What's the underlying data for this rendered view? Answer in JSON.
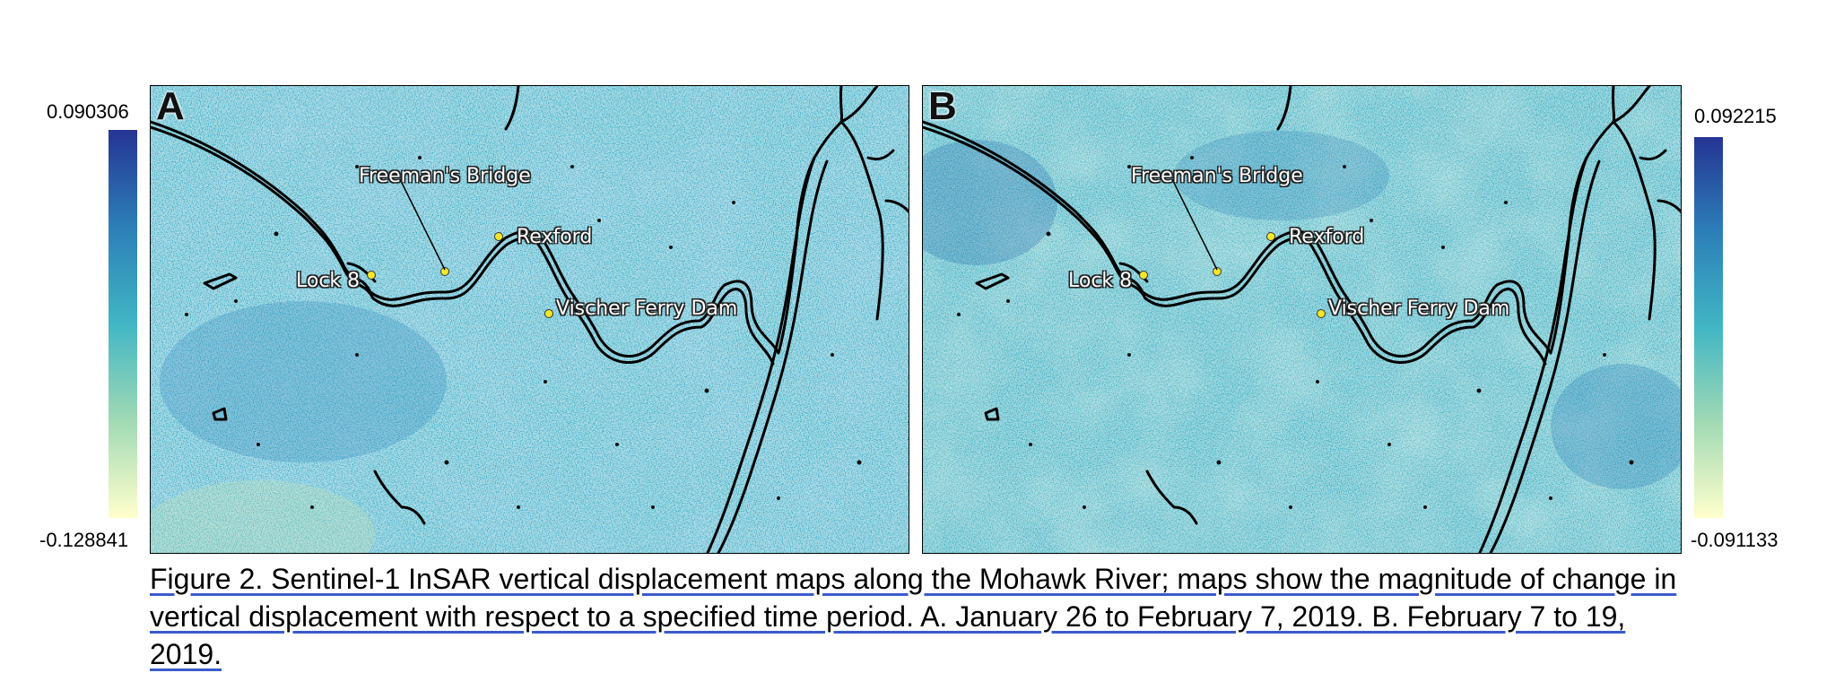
{
  "figure": {
    "caption": "Figure 2. Sentinel-1 InSAR vertical displacement maps along the Mohawk River; maps show the magnitude of change in vertical displacement with respect to a specified time period. A. January 26 to February 7, 2019. B. February 7 to 19, 2019.",
    "colormap": [
      "#253494",
      "#2c7fb8",
      "#41b6c4",
      "#a1dab4",
      "#ffffcc"
    ],
    "panels": [
      {
        "letter": "A",
        "colorbar_max": "0.090306",
        "colorbar_min": "-0.128841",
        "labels": {
          "bridge": "Freeman's Bridge",
          "rexford": "Rexford",
          "lock": "Lock 8",
          "dam": "Vischer Ferry Dam"
        }
      },
      {
        "letter": "B",
        "colorbar_max": "0.092215",
        "colorbar_min": "-0.091133",
        "labels": {
          "bridge": "Freeman's Bridge",
          "rexford": "Rexford",
          "lock": "Lock 8",
          "dam": "Vischer Ferry Dam"
        }
      }
    ]
  }
}
